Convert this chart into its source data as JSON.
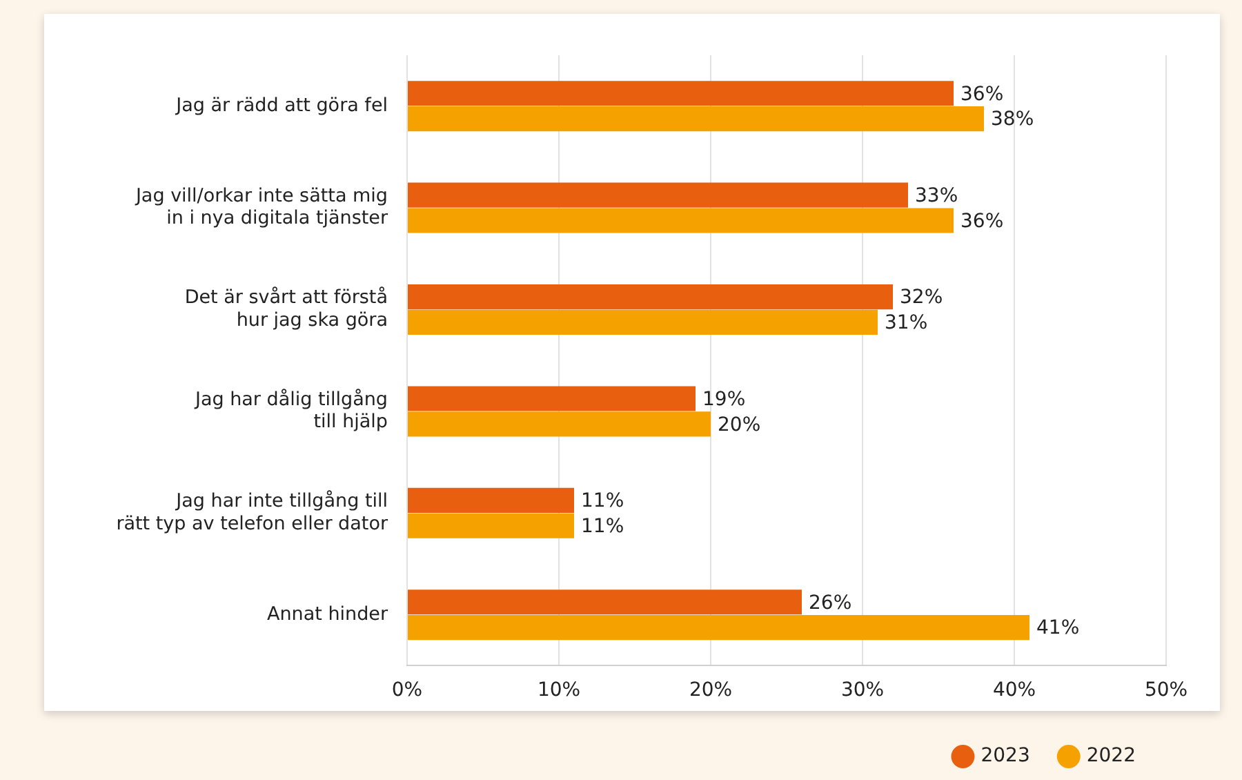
{
  "chart_data": {
    "type": "bar",
    "orientation": "horizontal",
    "categories": [
      "Jag är rädd att göra fel",
      "Jag vill/orkar inte sätta mig\nin i nya digitala tjänster",
      "Det är svårt att förstå\nhur jag ska göra",
      "Jag har dålig tillgång\ntill hjälp",
      "Jag har inte tillgång till\nrätt typ av telefon eller dator",
      "Annat hinder"
    ],
    "series": [
      {
        "name": "2023",
        "color": "#e8600f",
        "values": [
          36,
          33,
          32,
          19,
          11,
          26
        ],
        "value_labels": [
          "36%",
          "33%",
          "32%",
          "19%",
          "11%",
          "26%"
        ]
      },
      {
        "name": "2022",
        "color": "#f5a100",
        "values": [
          38,
          36,
          31,
          20,
          11,
          41
        ],
        "value_labels": [
          "38%",
          "36%",
          "31%",
          "20%",
          "11%",
          "41%"
        ]
      }
    ],
    "xlim": [
      0,
      50
    ],
    "xticks": [
      {
        "value": 0,
        "label": "0%"
      },
      {
        "value": 10,
        "label": "10%"
      },
      {
        "value": 20,
        "label": "20%"
      },
      {
        "value": 30,
        "label": "30%"
      },
      {
        "value": 40,
        "label": "40%"
      },
      {
        "value": 50,
        "label": "50%"
      }
    ],
    "grid": "x",
    "legend": "bottom right"
  }
}
